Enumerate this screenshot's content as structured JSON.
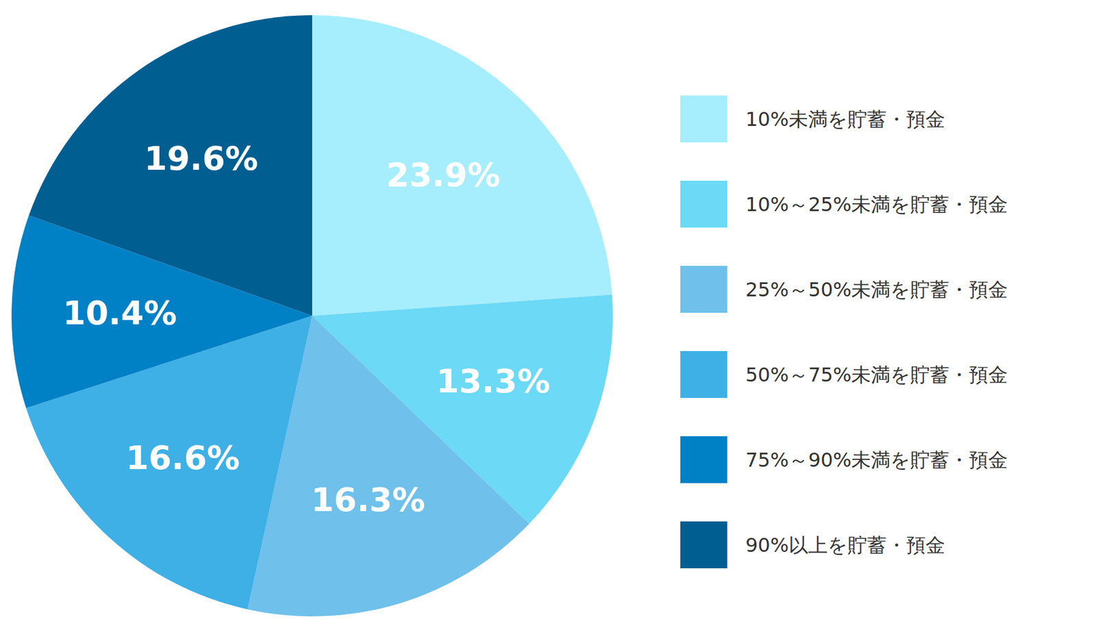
{
  "chart_data": {
    "type": "pie",
    "categories": [
      "10%未満を貯蓄・預金",
      "10%～25%未満を貯蓄・預金",
      "25%～50%未満を貯蓄・預金",
      "50%～75%未満を貯蓄・預金",
      "75%～90%未満を貯蓄・預金",
      "90%以上を貯蓄・預金"
    ],
    "values": [
      23.9,
      13.3,
      16.3,
      16.6,
      10.4,
      19.6
    ],
    "value_labels": [
      "23.9%",
      "13.3%",
      "16.3%",
      "16.6%",
      "10.4%",
      "19.6%"
    ],
    "colors": [
      "#a6edfd",
      "#6cd9f6",
      "#6fc0ea",
      "#3eb0e6",
      "#0080c5",
      "#005e91"
    ],
    "data_labels": true,
    "legend": "right"
  }
}
